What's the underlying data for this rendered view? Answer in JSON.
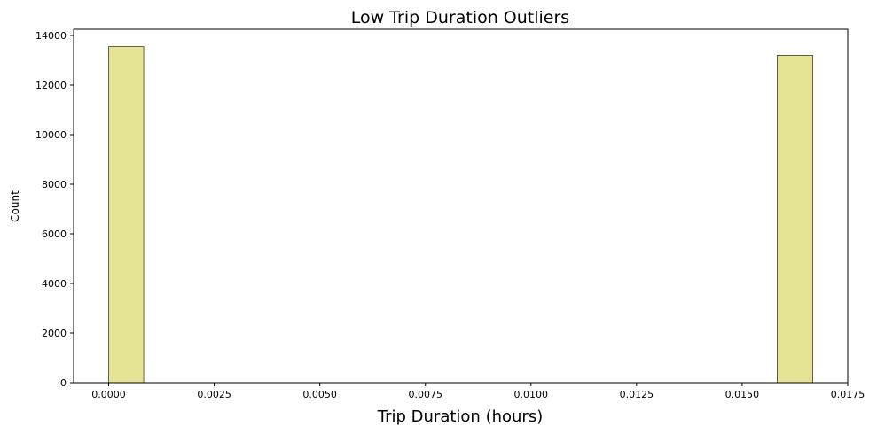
{
  "chart_data": {
    "type": "bar",
    "title": "Low Trip Duration Outliers",
    "xlabel": "Trip Duration (hours)",
    "ylabel": "Count",
    "xlim": [
      -0.00083,
      0.0175
    ],
    "ylim": [
      0,
      14250
    ],
    "x_ticks": [
      0.0,
      0.0025,
      0.005,
      0.0075,
      0.01,
      0.0125,
      0.015,
      0.0175
    ],
    "x_tick_labels": [
      "0.0000",
      "0.0025",
      "0.0050",
      "0.0075",
      "0.0100",
      "0.0125",
      "0.0150",
      "0.0175"
    ],
    "y_ticks": [
      0,
      2000,
      4000,
      6000,
      8000,
      10000,
      12000,
      14000
    ],
    "y_tick_labels": [
      "0",
      "2000",
      "4000",
      "6000",
      "8000",
      "10000",
      "12000",
      "14000"
    ],
    "bars": [
      {
        "x0": 0.0,
        "x1": 0.00083,
        "value": 13550
      },
      {
        "x0": 0.01583,
        "x1": 0.01667,
        "value": 13200
      }
    ],
    "grid": false,
    "bar_color": "#e5e394",
    "bar_edge_color": "#3b3b2a"
  }
}
